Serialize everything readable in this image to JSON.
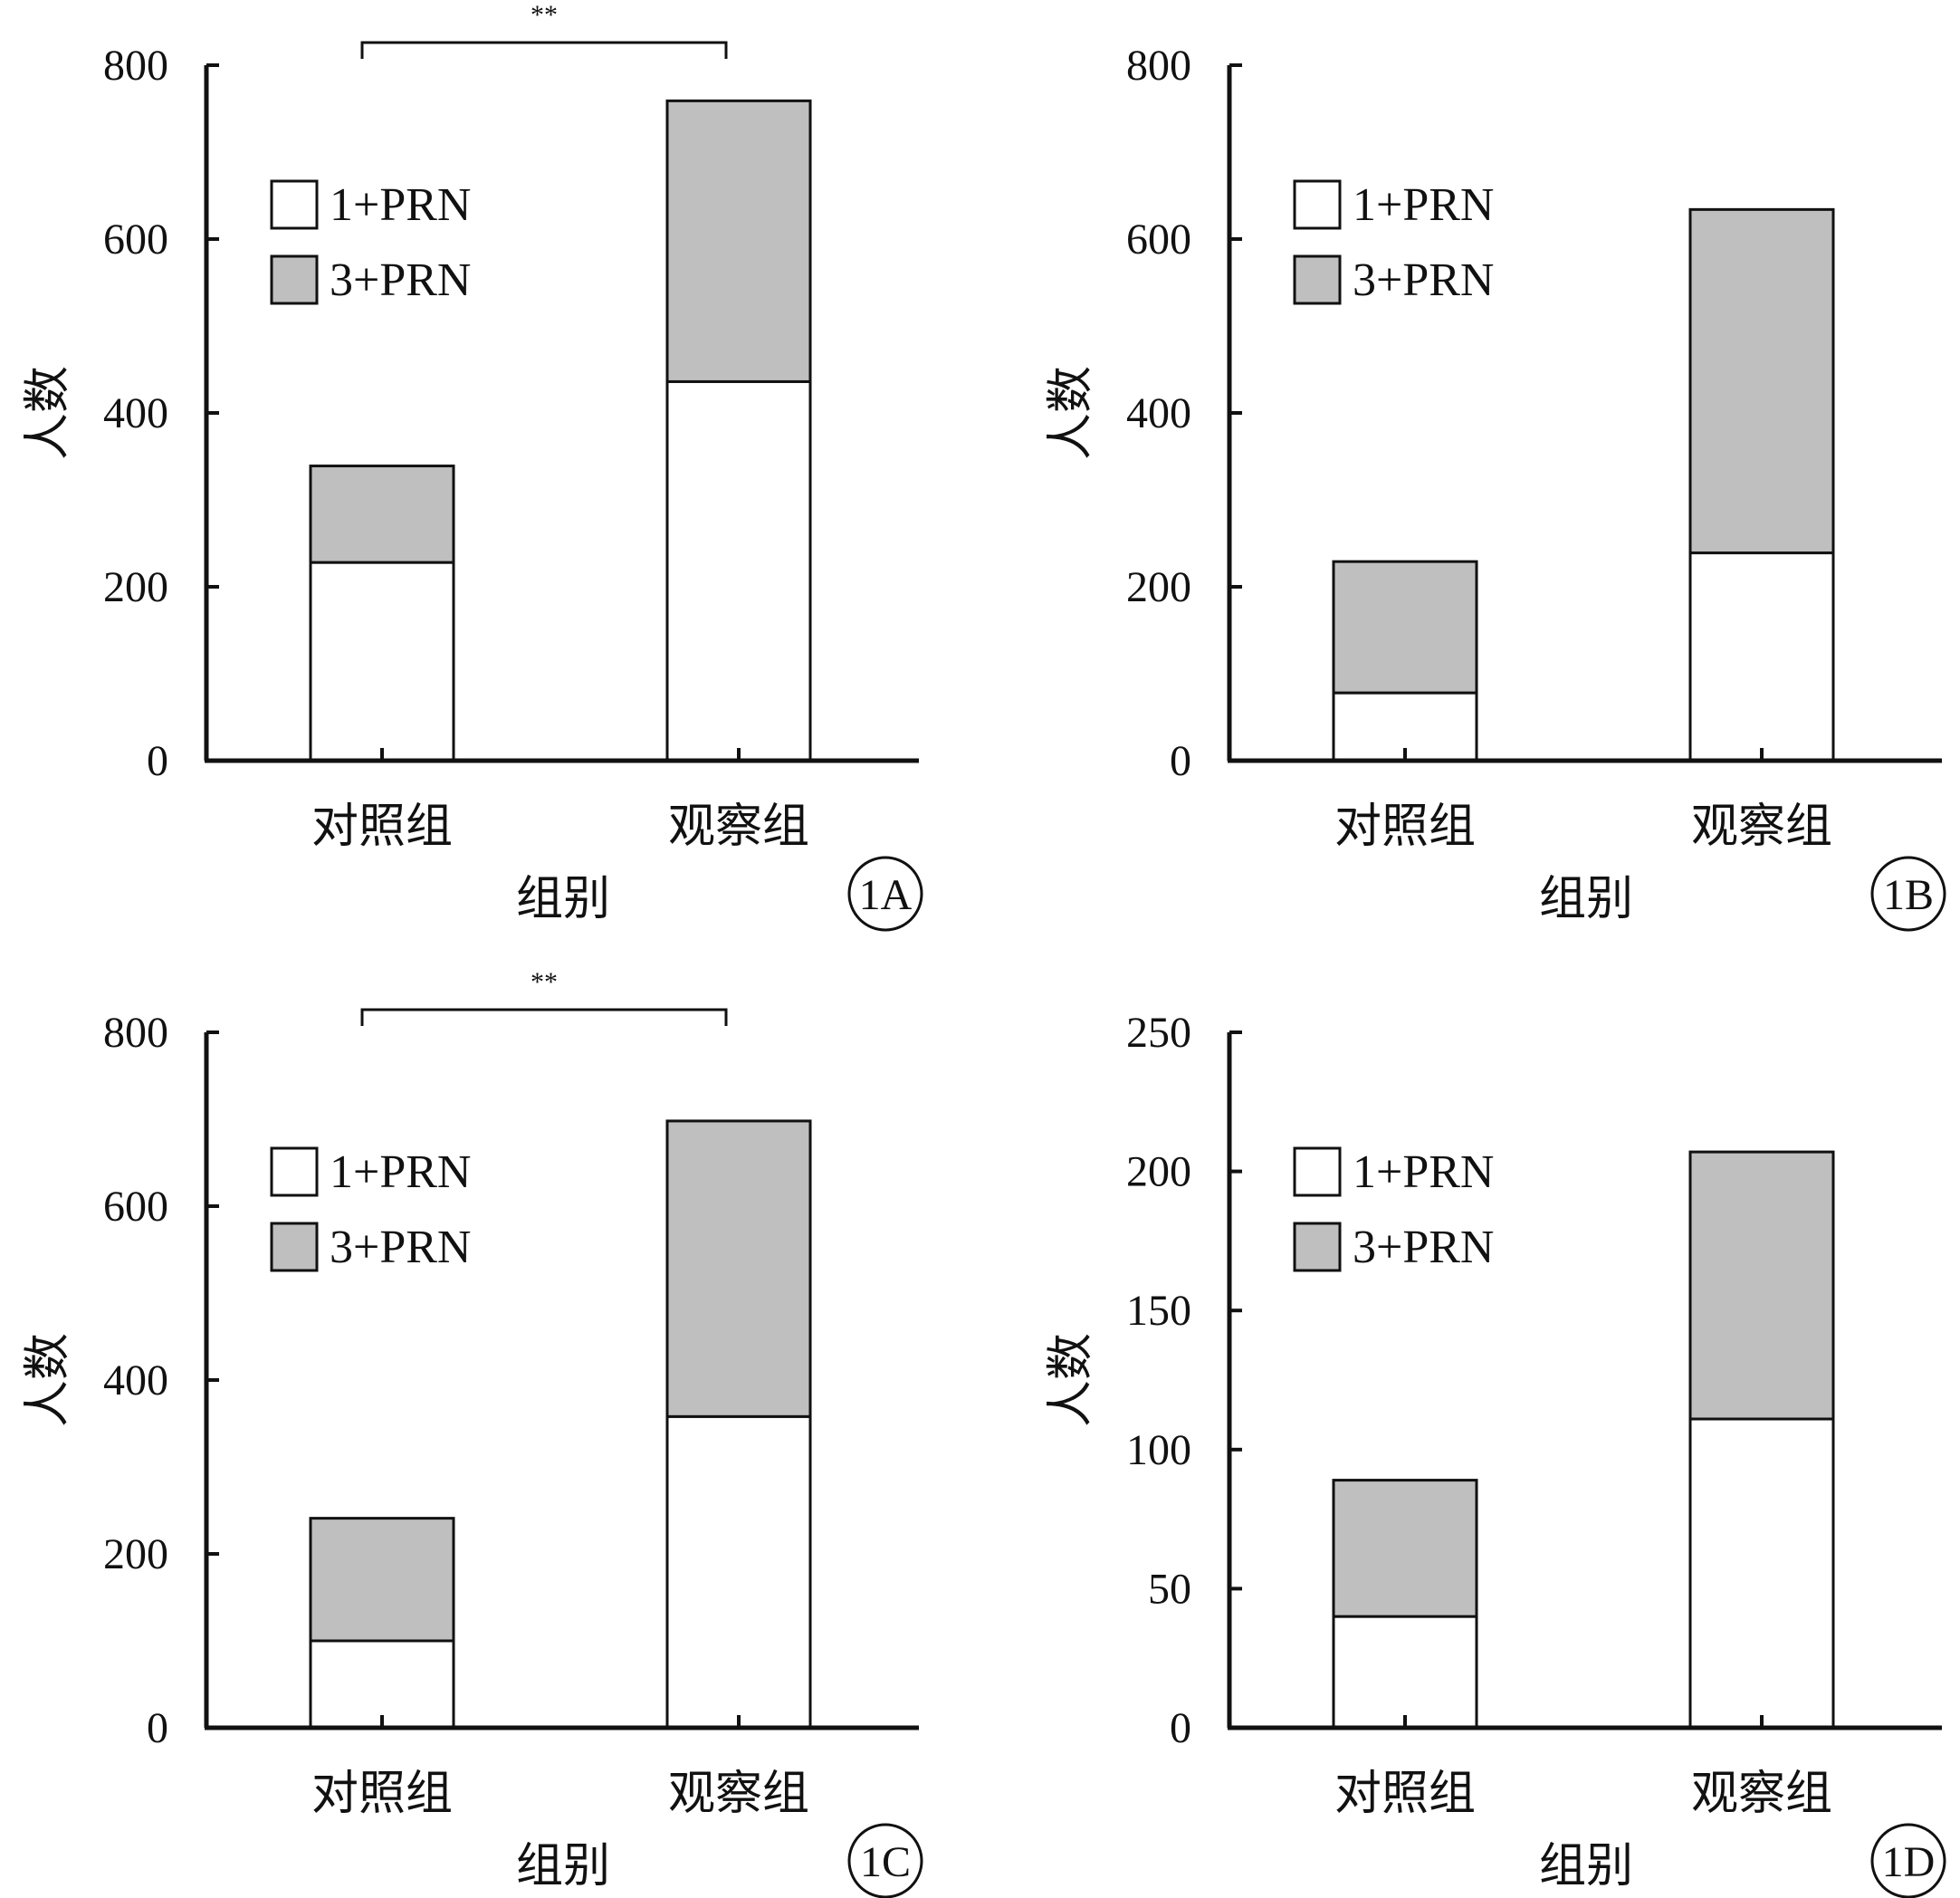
{
  "figure": {
    "colors": {
      "axis": "#111111",
      "series_1": "#ffffff",
      "series_3": "#bfbfbf",
      "outline": "#111111"
    }
  },
  "chart_data": [
    {
      "panel": "1A",
      "type": "bar",
      "stacked": true,
      "categories": [
        "对照组",
        "观察组"
      ],
      "series": [
        {
          "name": "1+PRN",
          "values": [
            228,
            436
          ]
        },
        {
          "name": "3+PRN",
          "values": [
            111,
            323
          ]
        }
      ],
      "ylim": [
        0,
        800
      ],
      "yticks": [
        "0",
        "200",
        "400",
        "600",
        "800"
      ],
      "xlabel": "组别",
      "ylabel": "人数",
      "significance": "**",
      "legend_position": "top-left",
      "grid": false
    },
    {
      "panel": "1B",
      "type": "bar",
      "stacked": true,
      "categories": [
        "对照组",
        "观察组"
      ],
      "series": [
        {
          "name": "1+PRN",
          "values": [
            78,
            239
          ]
        },
        {
          "name": "3+PRN",
          "values": [
            151,
            395
          ]
        }
      ],
      "ylim": [
        0,
        800
      ],
      "yticks": [
        "0",
        "200",
        "400",
        "600",
        "800"
      ],
      "xlabel": "组别",
      "ylabel": "人数",
      "significance": "",
      "legend_position": "top-left",
      "grid": false
    },
    {
      "panel": "1C",
      "type": "bar",
      "stacked": true,
      "categories": [
        "对照组",
        "观察组"
      ],
      "series": [
        {
          "name": "1+PRN",
          "values": [
            100,
            358
          ]
        },
        {
          "name": "3+PRN",
          "values": [
            141,
            340
          ]
        }
      ],
      "ylim": [
        0,
        800
      ],
      "yticks": [
        "0",
        "200",
        "400",
        "600",
        "800"
      ],
      "xlabel": "组别",
      "ylabel": "人数",
      "significance": "**",
      "legend_position": "top-left",
      "grid": false
    },
    {
      "panel": "1D",
      "type": "bar",
      "stacked": true,
      "categories": [
        "对照组",
        "观察组"
      ],
      "series": [
        {
          "name": "1+PRN",
          "values": [
            40,
            111
          ]
        },
        {
          "name": "3+PRN",
          "values": [
            49,
            96
          ]
        }
      ],
      "ylim": [
        0,
        250
      ],
      "yticks": [
        "0",
        "50",
        "100",
        "150",
        "200",
        "250"
      ],
      "xlabel": "组别",
      "ylabel": "人数",
      "significance": "",
      "legend_position": "top-left",
      "grid": false
    }
  ]
}
